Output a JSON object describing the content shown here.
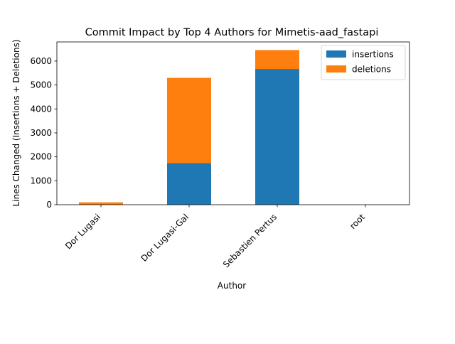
{
  "chart_data": {
    "type": "bar",
    "stacked": true,
    "title": "Commit Impact by Top 4 Authors for Mimetis-aad_fastapi",
    "xlabel": "Author",
    "ylabel": "Lines Changed (Insertions + Deletions)",
    "categories": [
      "Dor Lugasi",
      "Dor Lugasi-Gal",
      "Sebastien Pertus",
      "root"
    ],
    "series": [
      {
        "name": "insertions",
        "color": "#1f77b4",
        "values": [
          0,
          1740,
          5670,
          0
        ]
      },
      {
        "name": "deletions",
        "color": "#ff7f0e",
        "values": [
          100,
          3560,
          790,
          0
        ]
      }
    ],
    "ylim": [
      0,
      6800
    ],
    "yticks": [
      0,
      1000,
      2000,
      3000,
      4000,
      5000,
      6000
    ],
    "grid": false,
    "legend_position": "top-right"
  }
}
